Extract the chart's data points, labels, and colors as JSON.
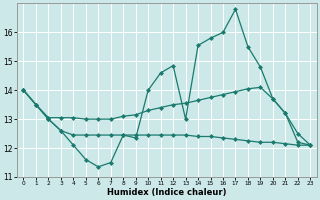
{
  "xlabel": "Humidex (Indice chaleur)",
  "background_color": "#cce8e8",
  "line_color": "#1a7a6e",
  "grid_color": "#ffffff",
  "xlim": [
    -0.5,
    23.5
  ],
  "ylim": [
    11,
    17
  ],
  "yticks": [
    11,
    12,
    13,
    14,
    15,
    16
  ],
  "xticks": [
    0,
    1,
    2,
    3,
    4,
    5,
    6,
    7,
    8,
    9,
    10,
    11,
    12,
    13,
    14,
    15,
    16,
    17,
    18,
    19,
    20,
    21,
    22,
    23
  ],
  "series": [
    {
      "x": [
        0,
        1,
        2,
        3,
        4,
        5,
        6,
        7,
        8,
        9,
        10,
        11,
        12,
        13,
        14,
        15,
        16,
        17,
        18,
        19,
        20,
        21,
        22,
        23
      ],
      "y": [
        14.0,
        13.5,
        13.0,
        12.6,
        12.1,
        11.6,
        11.35,
        11.5,
        12.45,
        12.35,
        14.0,
        14.6,
        14.85,
        13.0,
        15.55,
        15.8,
        16.0,
        16.8,
        15.5,
        14.8,
        13.7,
        13.2,
        12.5,
        12.1
      ]
    },
    {
      "x": [
        0,
        1,
        2,
        3,
        4,
        5,
        6,
        7,
        8,
        9,
        10,
        11,
        12,
        13,
        14,
        15,
        16,
        17,
        18,
        19,
        20,
        21,
        22,
        23
      ],
      "y": [
        14.0,
        13.5,
        13.05,
        13.05,
        13.05,
        13.0,
        13.0,
        13.0,
        13.1,
        13.15,
        13.3,
        13.4,
        13.5,
        13.55,
        13.65,
        13.75,
        13.85,
        13.95,
        14.05,
        14.1,
        13.7,
        13.2,
        12.2,
        12.1
      ]
    },
    {
      "x": [
        0,
        1,
        2,
        3,
        4,
        5,
        6,
        7,
        8,
        9,
        10,
        11,
        12,
        13,
        14,
        15,
        16,
        17,
        18,
        19,
        20,
        21,
        22,
        23
      ],
      "y": [
        14.0,
        13.5,
        13.0,
        12.6,
        12.45,
        12.45,
        12.45,
        12.45,
        12.45,
        12.45,
        12.45,
        12.45,
        12.45,
        12.45,
        12.4,
        12.4,
        12.35,
        12.3,
        12.25,
        12.2,
        12.2,
        12.15,
        12.1,
        12.1
      ]
    }
  ]
}
